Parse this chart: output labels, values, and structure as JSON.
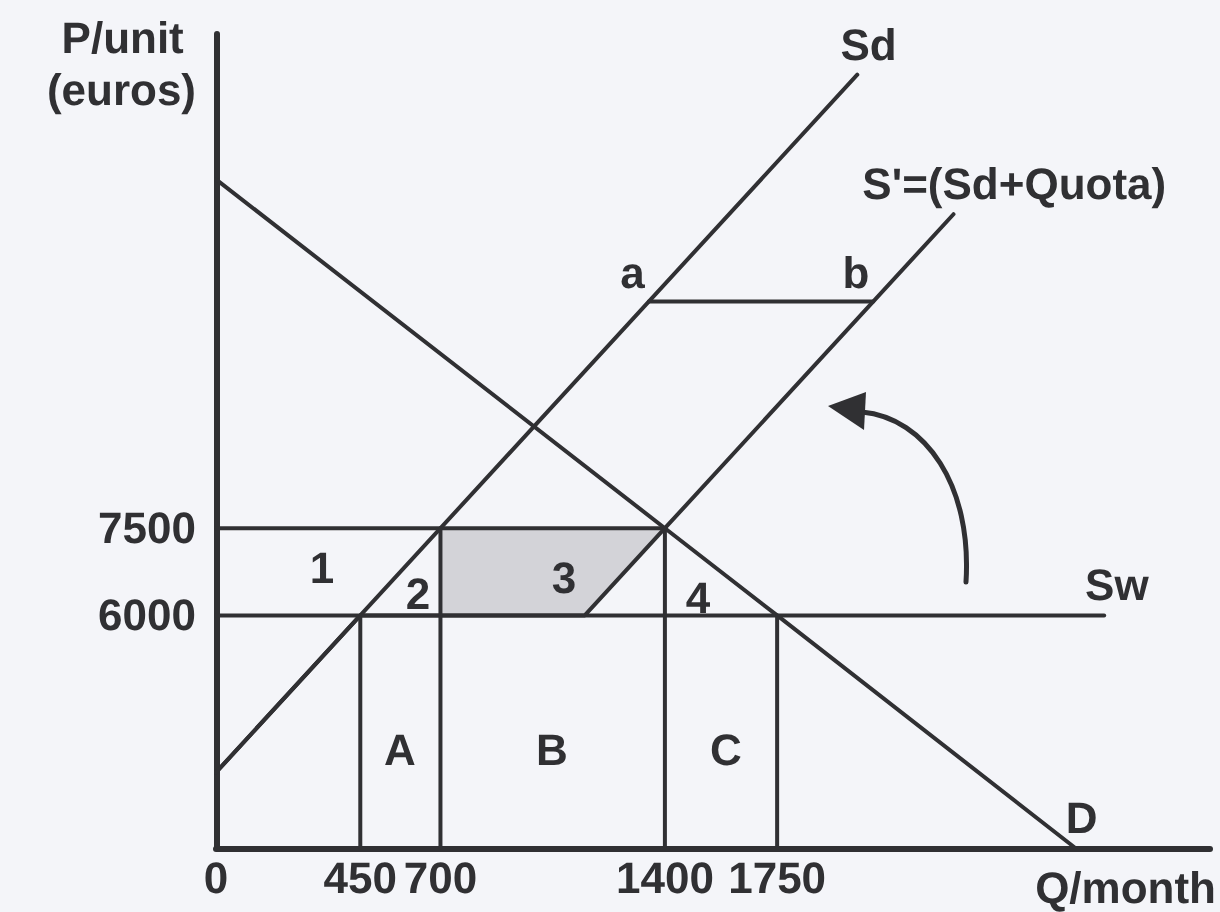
{
  "chart_data": {
    "type": "line",
    "xlabel": "Q/month",
    "ylabel": "P/unit (euros)",
    "xlim": [
      0,
      3100
    ],
    "xticks": [
      0,
      450,
      700,
      1400,
      1750
    ],
    "ylim": [
      2000,
      16000
    ],
    "yticks": [
      6000,
      7500
    ],
    "marker": "none",
    "series": [
      {
        "name": "Sd",
        "color": "#303033",
        "x": [
          0,
          2000
        ],
        "values": [
          3300,
          15300
        ]
      },
      {
        "name": "S'=(Sd+Quota)",
        "color": "#303033",
        "x": [
          0,
          450,
          1150,
          1400,
          2300
        ],
        "values": [
          3300,
          6000,
          6000,
          7500,
          12900
        ]
      },
      {
        "name": "D",
        "color": "#303033",
        "x": [
          0,
          1400,
          1750,
          2680
        ],
        "values": [
          13500,
          7500,
          6000,
          2000
        ]
      },
      {
        "name": "Sw",
        "color": "#303033",
        "x": [
          0,
          2770
        ],
        "values": [
          6000,
          6000
        ]
      },
      {
        "color": "#303033",
        "x": [
          0,
          700,
          1150,
          1400
        ],
        "values": [
          7500,
          7500,
          7500,
          7500
        ],
        "lower": [
          null,
          6000,
          6000,
          7500
        ],
        "upper": [
          null,
          7500,
          7500,
          7500
        ]
      },
      {
        "color": "#303033",
        "x": [
          450,
          450
        ],
        "values": [
          2000,
          6000
        ]
      },
      {
        "color": "#303033",
        "x": [
          700,
          700
        ],
        "values": [
          2000,
          7500
        ]
      },
      {
        "color": "#303033",
        "x": [
          1400,
          1400
        ],
        "values": [
          2000,
          7500
        ]
      },
      {
        "color": "#303033",
        "x": [
          1750,
          1750
        ],
        "values": [
          2000,
          6000
        ]
      },
      {
        "color": "#303033",
        "x": [
          1350,
          2050
        ],
        "values": [
          11400,
          11400
        ]
      }
    ],
    "annotations": [
      "1",
      "2",
      "3",
      "4",
      "A",
      "B",
      "C",
      {
        "text": "a",
        "x": 1350,
        "y": 11400
      },
      {
        "text": "b",
        "x": 2050,
        "y": 11400
      }
    ]
  }
}
